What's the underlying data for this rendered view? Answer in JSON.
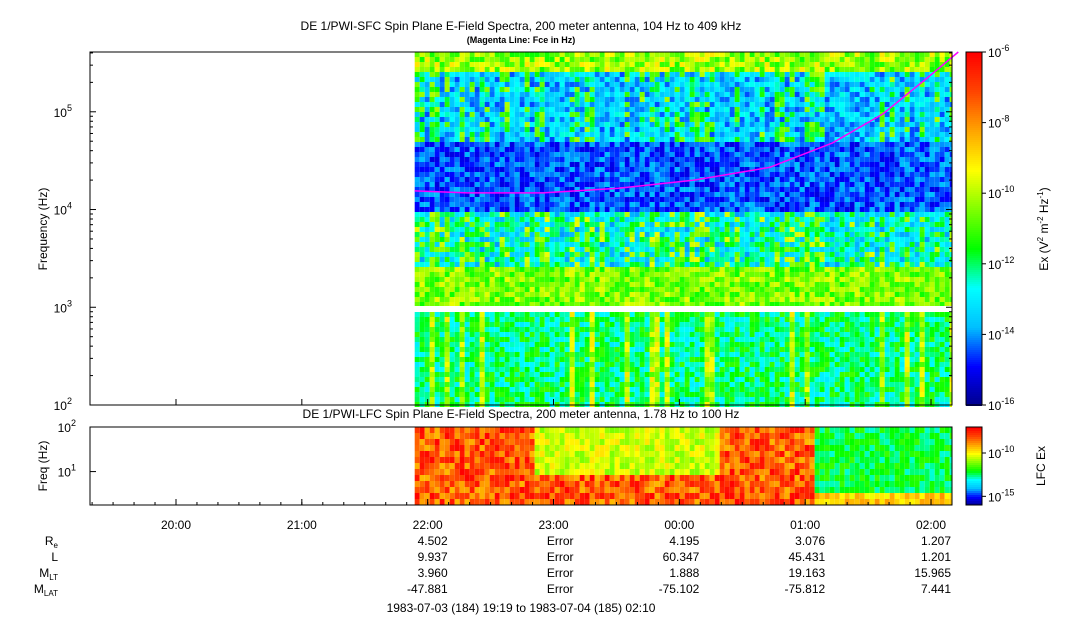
{
  "chart_data": [
    {
      "type": "heatmap",
      "title": "DE 1/PWI-SFC  Spin Plane E-Field Spectra, 200 meter antenna, 104 Hz to 409 kHz",
      "subtitle": "(Magenta Line: Fce in Hz)",
      "ylabel": "Frequency (Hz)",
      "yscale": "log",
      "ylim": [
        100,
        409000
      ],
      "yticks": [
        {
          "base": "10",
          "exp": "2"
        },
        {
          "base": "10",
          "exp": "3"
        },
        {
          "base": "10",
          "exp": "4"
        },
        {
          "base": "10",
          "exp": "5"
        }
      ],
      "colorbar": {
        "label_prefix": "Ex (V",
        "label_sup1": "2",
        "label_mid": " m",
        "label_sup2": "-2",
        "label_mid2": " Hz",
        "label_sup3": "-1",
        "label_suffix": ")",
        "scale": "log",
        "range": [
          1e-16,
          1e-06
        ],
        "ticks": [
          {
            "base": "10",
            "exp": "-6"
          },
          {
            "base": "10",
            "exp": "-8"
          },
          {
            "base": "10",
            "exp": "-10"
          },
          {
            "base": "10",
            "exp": "-12"
          },
          {
            "base": "10",
            "exp": "-14"
          },
          {
            "base": "10",
            "exp": "-16"
          }
        ],
        "colormap": [
          "#00008b",
          "#0000ff",
          "#00bfff",
          "#00ffff",
          "#00ff00",
          "#7fff00",
          "#ffff00",
          "#ffa500",
          "#ff4500",
          "#ff0000"
        ]
      },
      "data_start_hours_after_1919": 2.58,
      "fce_line": {
        "color": "#ff00ff",
        "points": [
          [
            2.58,
            15500
          ],
          [
            3.0,
            14800
          ],
          [
            3.6,
            14800
          ],
          [
            4.2,
            16500
          ],
          [
            4.8,
            20000
          ],
          [
            5.4,
            27000
          ],
          [
            5.9,
            48000
          ],
          [
            6.3,
            95000
          ],
          [
            6.65,
            220000
          ],
          [
            6.9,
            409000
          ]
        ]
      }
    },
    {
      "type": "heatmap",
      "title": "DE 1/PWI-LFC  Spin Plane E-Field Spectra, 200 meter antenna, 1.78 Hz to 100 Hz",
      "ylabel": "Freq (Hz)",
      "yscale": "log",
      "ylim": [
        1.78,
        100
      ],
      "yticks": [
        {
          "base": "10",
          "exp": "1"
        },
        {
          "base": "10",
          "exp": "2"
        }
      ],
      "colorbar": {
        "label": "LFC Ex",
        "scale": "log",
        "range": [
          1e-16,
          1e-07
        ],
        "ticks": [
          {
            "base": "10",
            "exp": "-10"
          },
          {
            "base": "10",
            "exp": "-15"
          }
        ]
      }
    }
  ],
  "time_axis": {
    "ticks": [
      "20:00",
      "21:00",
      "22:00",
      "23:00",
      "00:00",
      "01:00",
      "02:00"
    ],
    "range_label": "1983-07-03 (184) 19:19 to 1983-07-04 (185) 02:10"
  },
  "ephemeris": {
    "rows": [
      {
        "label": "R",
        "sub": "e",
        "values": [
          "4.502",
          "Error",
          "4.195",
          "3.076",
          "1.207"
        ]
      },
      {
        "label": "L",
        "sub": "",
        "values": [
          "9.937",
          "Error",
          "60.347",
          "45.431",
          "1.201"
        ]
      },
      {
        "label": "M",
        "sub": "LT",
        "values": [
          "3.960",
          "Error",
          "1.888",
          "19.163",
          "15.965"
        ]
      },
      {
        "label": "M",
        "sub": "LAT",
        "values": [
          "-47.881",
          "Error",
          "-75.102",
          "-75.812",
          "7.441"
        ]
      }
    ]
  }
}
